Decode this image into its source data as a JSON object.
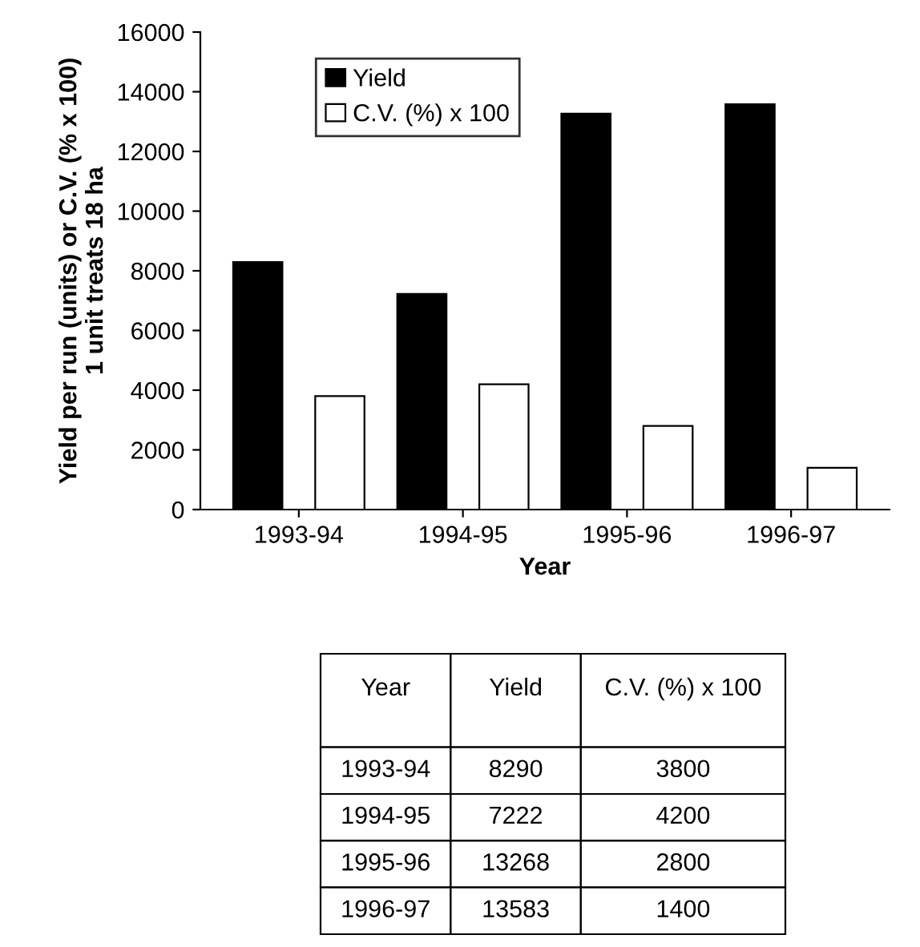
{
  "chart_data": [
    {
      "type": "bar",
      "xlabel": "Year",
      "ylabel": "Yield per run (units) or C.V. (% x 100)\n1 unit treats 18 ha",
      "categories": [
        "1993-94",
        "1994-95",
        "1995-96",
        "1996-97"
      ],
      "series": [
        {
          "name": "Yield",
          "color": "#000000",
          "values": [
            8290,
            7222,
            13268,
            13583
          ]
        },
        {
          "name": "C.V. (%) x 100",
          "color": "#ffffff",
          "values": [
            3800,
            4200,
            2800,
            1400
          ]
        }
      ],
      "ylim": [
        0,
        16000
      ],
      "yticks": [
        0,
        2000,
        4000,
        6000,
        8000,
        10000,
        12000,
        14000,
        16000
      ],
      "grid": false,
      "legend": "top left"
    },
    {
      "type": "other",
      "annotations": [
        "Year",
        "Yield",
        "C.V. (%) x 100",
        "1993-94",
        "8290",
        "3800",
        "1994-95",
        "7222",
        "4200",
        "1995-96",
        "13268",
        "2800",
        "1996-97",
        "13583",
        "1400"
      ]
    }
  ]
}
